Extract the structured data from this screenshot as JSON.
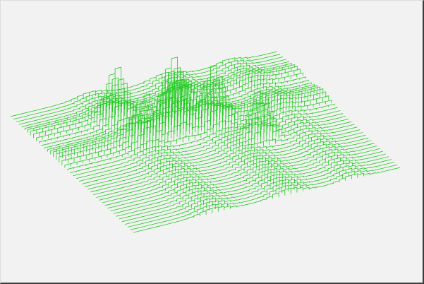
{
  "chart_data": {
    "type": "surface",
    "render_style": "lego-histogram",
    "line_color": "#22cc22",
    "background": "#f2f2f2",
    "frame_color": "#3c3c3c",
    "grid": {
      "nx": 44,
      "ny": 44
    },
    "x_range": [
      0,
      1
    ],
    "y_range": [
      0,
      1
    ],
    "z_range": [
      0,
      1
    ],
    "ridges": [
      {
        "axis": "x",
        "center": 0.3,
        "width": 0.05,
        "amplitude": 0.06
      },
      {
        "axis": "x",
        "center": 0.58,
        "width": 0.05,
        "amplitude": 0.07
      },
      {
        "axis": "x",
        "center": 0.82,
        "width": 0.04,
        "amplitude": 0.05
      },
      {
        "axis": "y",
        "center": 0.62,
        "width": 0.05,
        "amplitude": 0.07
      },
      {
        "axis": "y",
        "center": 0.82,
        "width": 0.04,
        "amplitude": 0.05
      }
    ],
    "peaks": [
      {
        "x": 0.3,
        "y": 0.78,
        "width": 0.03,
        "amplitude": 0.55
      },
      {
        "x": 0.32,
        "y": 0.6,
        "width": 0.03,
        "amplitude": 0.45
      },
      {
        "x": 0.44,
        "y": 0.62,
        "width": 0.035,
        "amplitude": 0.8
      },
      {
        "x": 0.58,
        "y": 0.6,
        "width": 0.03,
        "amplitude": 0.55
      },
      {
        "x": 0.68,
        "y": 0.44,
        "width": 0.03,
        "amplitude": 0.55
      },
      {
        "x": 0.52,
        "y": 0.76,
        "width": 0.035,
        "amplitude": 0.3
      }
    ]
  }
}
